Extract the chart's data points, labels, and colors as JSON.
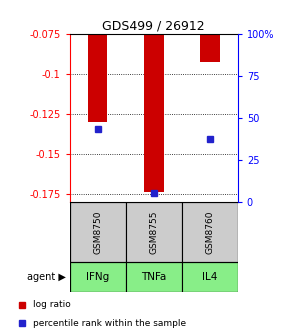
{
  "title": "GDS499 / 26912",
  "samples": [
    "GSM8750",
    "GSM8755",
    "GSM8760"
  ],
  "agents": [
    "IFNg",
    "TNFa",
    "IL4"
  ],
  "log_ratios": [
    -0.13,
    -0.174,
    -0.093
  ],
  "percentile_ranks": [
    43,
    5,
    37
  ],
  "ylim_left": [
    -0.18,
    -0.075
  ],
  "ylim_right": [
    0,
    100
  ],
  "left_ticks": [
    -0.175,
    -0.15,
    -0.125,
    -0.1,
    -0.075
  ],
  "right_ticks": [
    0,
    25,
    50,
    75,
    100
  ],
  "right_tick_labels": [
    "0",
    "25",
    "50",
    "75",
    "100%"
  ],
  "bar_color": "#cc0000",
  "marker_color": "#2222cc",
  "agent_bg_color": "#88ee88",
  "sample_bg_color": "#cccccc",
  "legend_bar_color": "#cc0000",
  "legend_marker_color": "#2222cc",
  "bar_width": 0.35
}
